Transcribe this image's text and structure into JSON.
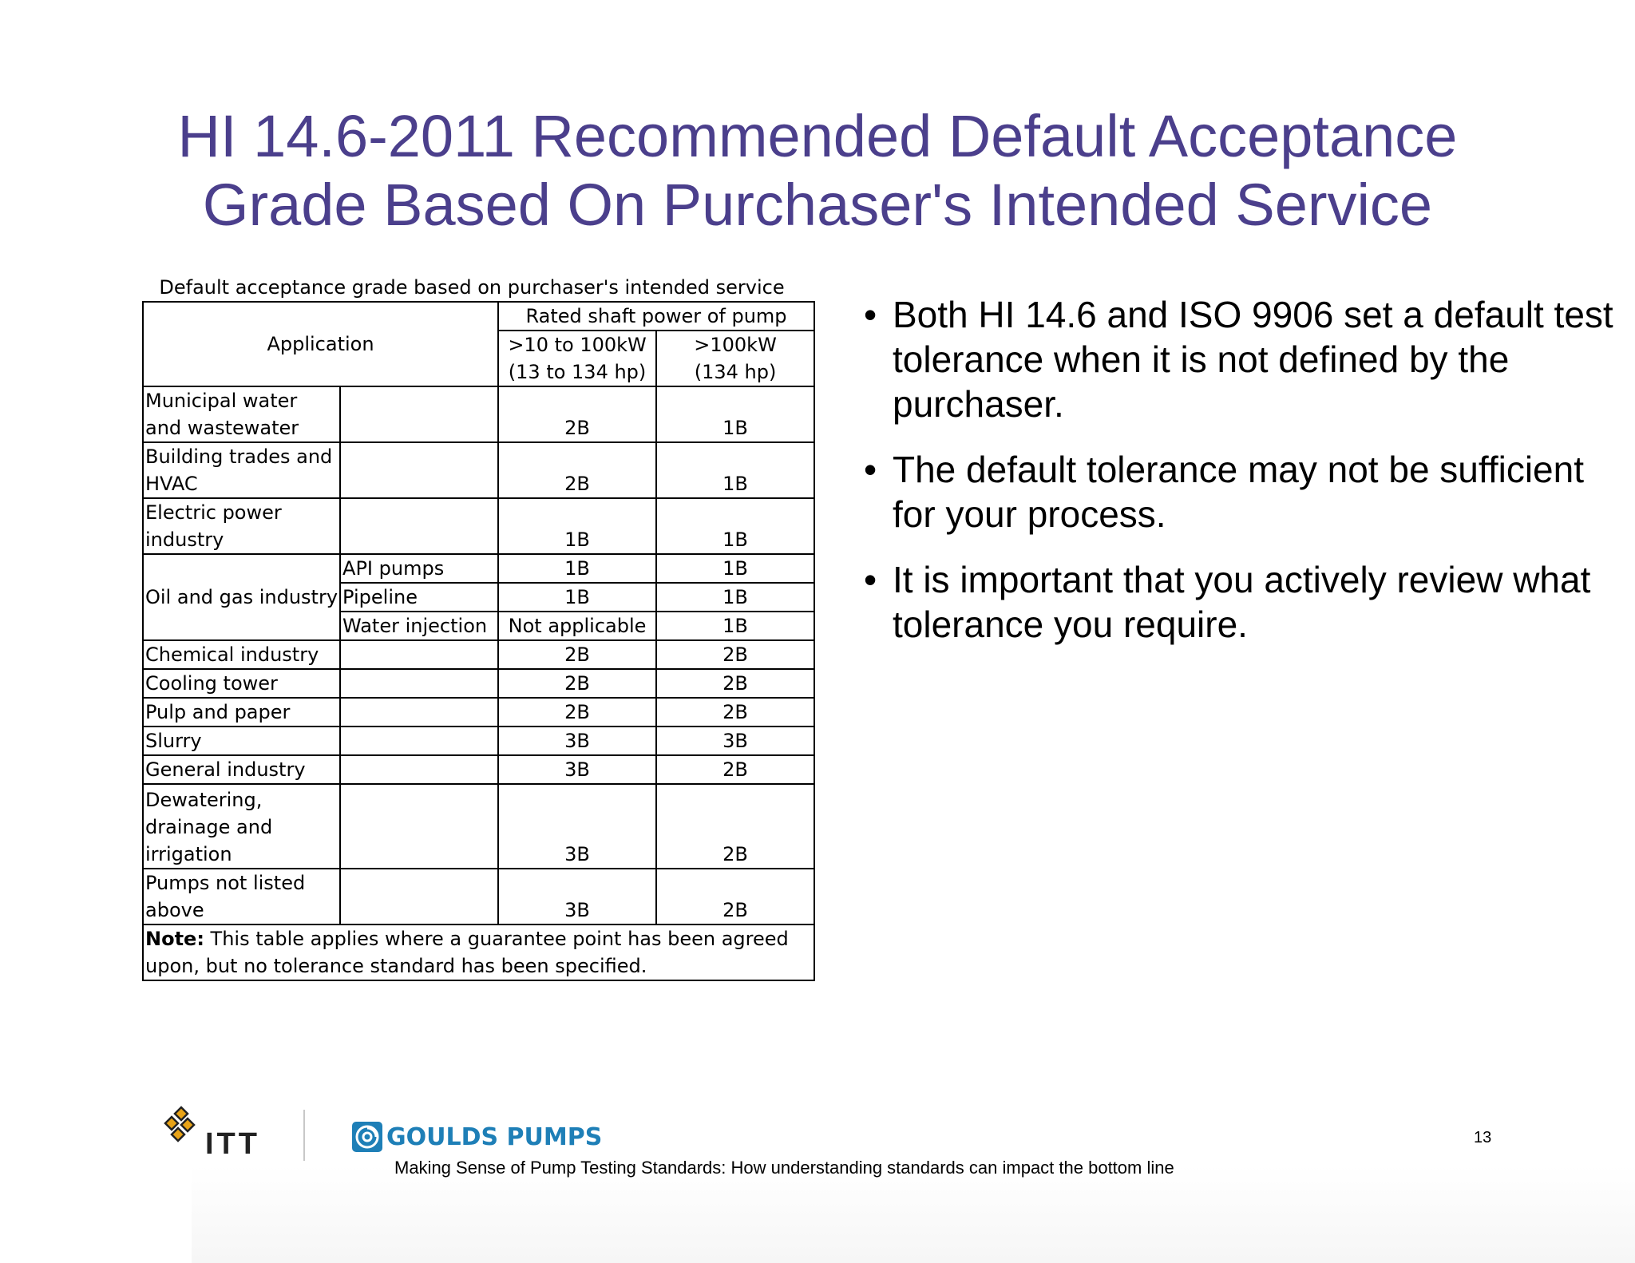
{
  "title": {
    "line1": "HI 14.6-2011 Recommended Default Acceptance",
    "line2": "Grade Based On Purchaser's Intended Service"
  },
  "table": {
    "caption": "Default acceptance grade based on purchaser's intended service",
    "header": {
      "application": "Application",
      "rated_power": "Rated shaft power of pump",
      "col1_line1": ">10 to 100kW",
      "col1_line2": "(13 to 134 hp)",
      "col2_line1": ">100kW",
      "col2_line2": "(134 hp)"
    },
    "rows": [
      {
        "application": "Municipal water and wastewater",
        "sub": "",
        "small": "2B",
        "large": "1B"
      },
      {
        "application": "Building trades and HVAC",
        "sub": "",
        "small": "2B",
        "large": "1B"
      },
      {
        "application": "Electric power industry",
        "sub": "",
        "small": "1B",
        "large": "1B"
      },
      {
        "application": "Oil and gas industry",
        "sub": "API pumps",
        "small": "1B",
        "large": "1B"
      },
      {
        "application": "",
        "sub": "Pipeline",
        "small": "1B",
        "large": "1B"
      },
      {
        "application": "",
        "sub": "Water injection",
        "small": "Not applicable",
        "large": "1B"
      },
      {
        "application": "Chemical industry",
        "sub": "",
        "small": "2B",
        "large": "2B"
      },
      {
        "application": "Cooling tower",
        "sub": "",
        "small": "2B",
        "large": "2B"
      },
      {
        "application": "Pulp and paper",
        "sub": "",
        "small": "2B",
        "large": "2B"
      },
      {
        "application": "Slurry",
        "sub": "",
        "small": "3B",
        "large": "3B"
      },
      {
        "application": "General industry",
        "sub": "",
        "small": "3B",
        "large": "2B"
      },
      {
        "application": "Dewatering, drainage and irrigation",
        "sub": "",
        "small": "3B",
        "large": "2B"
      },
      {
        "application": "Pumps not listed above",
        "sub": "",
        "small": "3B",
        "large": "2B"
      }
    ],
    "note_label": "Note:",
    "note_text": " This table applies where a guarantee point has been agreed upon, but no tolerance standard has been specified."
  },
  "bullets": [
    "Both HI 14.6 and ISO 9906 set a default test tolerance when it is not defined by the purchaser.",
    "The default tolerance may not be sufficient for your process.",
    "It is important that you actively review what tolerance you require."
  ],
  "footer": {
    "itt_logo_text": "ITT",
    "goulds_logo_text": "GOULDS PUMPS",
    "caption": "Making Sense of Pump Testing Standards: How understanding standards can impact the bottom line",
    "page_number": "13"
  },
  "colors": {
    "title": "#4b3f8c",
    "goulds_blue": "#1e7fb7",
    "itt_gold": "#e8a317"
  }
}
